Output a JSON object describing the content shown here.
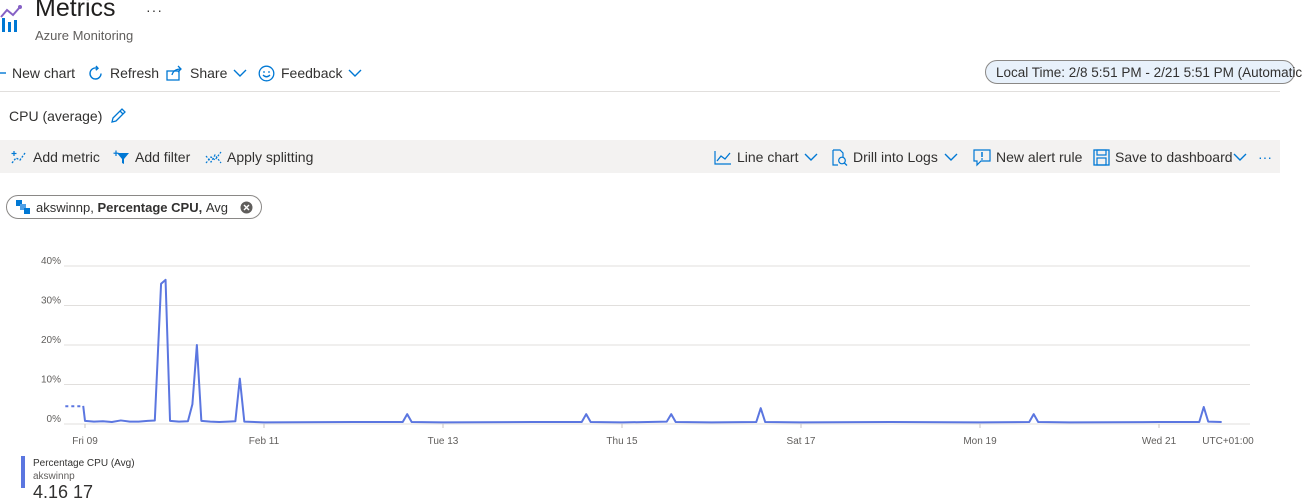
{
  "header": {
    "title": "Metrics",
    "subtitle": "Azure Monitoring",
    "more_label": "···",
    "logo_icon": "metrics-chart-icon"
  },
  "commands": {
    "new_chart": "New chart",
    "refresh": "Refresh",
    "share": "Share",
    "feedback": "Feedback",
    "time_range": "Local Time: 2/8 5:51 PM - 2/21 5:51 PM (Automatic"
  },
  "chart_title": "CPU (average)",
  "toolbar": {
    "add_metric": "Add metric",
    "add_filter": "Add filter",
    "apply_splitting": "Apply splitting",
    "line_chart": "Line chart",
    "drill_into_logs": "Drill into Logs",
    "new_alert_rule": "New alert rule",
    "save_to_dashboard": "Save to dashboard",
    "more": "···"
  },
  "metric_pill": {
    "resource": "akswinnp,",
    "metric": "Percentage CPU,",
    "aggregation": "Avg"
  },
  "legend": {
    "name": "Percentage CPU (Avg)",
    "resource": "akswinnp",
    "value": "4.16 17"
  },
  "colors": {
    "accent": "#0078d4",
    "series": "#5b76e0",
    "toolbar_bg": "#f3f2f1",
    "time_pill_bg": "#e8f1fb"
  },
  "chart_data": {
    "type": "line",
    "ylim": [
      0,
      40
    ],
    "y_ticks": [
      "0%",
      "10%",
      "20%",
      "30%",
      "40%"
    ],
    "x_ticks": [
      "Fri 09",
      "Feb 11",
      "Tue 13",
      "Thu 15",
      "Sat 17",
      "Mon 19",
      "Wed 21"
    ],
    "timezone_label": "UTC+01:00",
    "x_start_day": 8.74,
    "series": [
      {
        "points": [
          [
            9.0,
            0.8
          ],
          [
            9.1,
            0.6
          ],
          [
            9.2,
            0.7
          ],
          [
            9.3,
            0.5
          ],
          [
            9.4,
            0.9
          ],
          [
            9.5,
            0.6
          ],
          [
            9.6,
            0.6
          ],
          [
            9.7,
            0.8
          ],
          [
            9.78,
            0.9
          ],
          [
            9.85,
            35.5
          ],
          [
            9.9,
            36.5
          ],
          [
            9.95,
            0.8
          ],
          [
            10.05,
            0.6
          ],
          [
            10.15,
            0.7
          ],
          [
            10.2,
            5.0
          ],
          [
            10.25,
            20.0
          ],
          [
            10.3,
            0.8
          ],
          [
            10.4,
            0.6
          ],
          [
            10.5,
            0.5
          ],
          [
            10.6,
            0.6
          ],
          [
            10.68,
            0.7
          ],
          [
            10.73,
            11.5
          ],
          [
            10.78,
            0.6
          ],
          [
            11.0,
            0.4
          ],
          [
            12.0,
            0.5
          ],
          [
            12.55,
            0.5
          ],
          [
            12.6,
            2.5
          ],
          [
            12.65,
            0.5
          ],
          [
            13.0,
            0.4
          ],
          [
            14.0,
            0.5
          ],
          [
            14.55,
            0.5
          ],
          [
            14.6,
            2.5
          ],
          [
            14.65,
            0.5
          ],
          [
            15.0,
            0.4
          ],
          [
            15.5,
            0.6
          ],
          [
            15.55,
            2.5
          ],
          [
            15.6,
            0.5
          ],
          [
            16.0,
            0.4
          ],
          [
            16.5,
            0.5
          ],
          [
            16.55,
            4.0
          ],
          [
            16.6,
            0.5
          ],
          [
            17.0,
            0.4
          ],
          [
            18.0,
            0.5
          ],
          [
            19.0,
            0.4
          ],
          [
            19.55,
            0.5
          ],
          [
            19.6,
            2.5
          ],
          [
            19.65,
            0.5
          ],
          [
            20.0,
            0.4
          ],
          [
            21.0,
            0.5
          ],
          [
            21.45,
            0.5
          ],
          [
            21.5,
            4.3
          ],
          [
            21.55,
            0.6
          ],
          [
            21.7,
            0.5
          ]
        ],
        "dashed_prefix": [
          [
            8.78,
            4.5
          ],
          [
            8.95,
            4.5
          ]
        ],
        "prefix_point": [
          8.98,
          4.6
        ]
      }
    ]
  }
}
